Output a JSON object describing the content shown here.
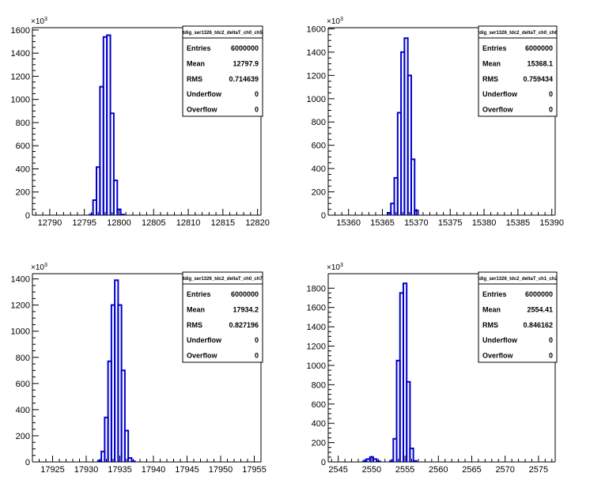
{
  "chart_data": [
    {
      "type": "histogram",
      "multiplier_label": "10",
      "multiplier_power": "3",
      "xlim": [
        12787.5,
        12820.5
      ],
      "ylim": [
        0,
        1620
      ],
      "x_ticks": [
        "12790",
        "12795",
        "12800",
        "12805",
        "12810",
        "12815",
        "12820"
      ],
      "y_ticks": [
        "0",
        "200",
        "400",
        "600",
        "800",
        "1000",
        "1200",
        "1400",
        "1600"
      ],
      "bin_width": 0.5,
      "bins": [
        {
          "x": 12796.0,
          "y": 5
        },
        {
          "x": 12796.5,
          "y": 130
        },
        {
          "x": 12797.0,
          "y": 415
        },
        {
          "x": 12797.5,
          "y": 1110
        },
        {
          "x": 12798.0,
          "y": 1540
        },
        {
          "x": 12798.5,
          "y": 1555
        },
        {
          "x": 12799.0,
          "y": 880
        },
        {
          "x": 12799.5,
          "y": 300
        },
        {
          "x": 12800.0,
          "y": 50
        },
        {
          "x": 12800.5,
          "y": 5
        }
      ],
      "stats": {
        "title": "tdig_ser1326_tdc2_deltaT_ch0_ch5",
        "rows": [
          {
            "label": "Entries",
            "value": "6000000"
          },
          {
            "label": "Mean",
            "value": "12797.9"
          },
          {
            "label": "RMS",
            "value": "0.714639"
          },
          {
            "label": "Underflow",
            "value": "0"
          },
          {
            "label": "Overflow",
            "value": "0"
          }
        ]
      }
    },
    {
      "type": "histogram",
      "multiplier_label": "10",
      "multiplier_power": "3",
      "xlim": [
        15357.0,
        15390.5
      ],
      "ylim": [
        0,
        1610
      ],
      "x_ticks": [
        "15360",
        "15365",
        "15370",
        "15375",
        "15380",
        "15385",
        "15390"
      ],
      "y_ticks": [
        "0",
        "200",
        "400",
        "600",
        "800",
        "1000",
        "1200",
        "1400",
        "1600"
      ],
      "bin_width": 0.5,
      "bins": [
        {
          "x": 15366.0,
          "y": 20
        },
        {
          "x": 15366.5,
          "y": 100
        },
        {
          "x": 15367.0,
          "y": 320
        },
        {
          "x": 15367.5,
          "y": 880
        },
        {
          "x": 15368.0,
          "y": 1400
        },
        {
          "x": 15368.5,
          "y": 1520
        },
        {
          "x": 15369.0,
          "y": 1200
        },
        {
          "x": 15369.5,
          "y": 480
        },
        {
          "x": 15370.0,
          "y": 40
        }
      ],
      "stats": {
        "title": "tdig_ser1326_tdc2_deltaT_ch0_ch6",
        "rows": [
          {
            "label": "Entries",
            "value": "6000000"
          },
          {
            "label": "Mean",
            "value": "15368.1"
          },
          {
            "label": "RMS",
            "value": "0.759434"
          },
          {
            "label": "Underflow",
            "value": "0"
          },
          {
            "label": "Overflow",
            "value": "0"
          }
        ]
      }
    },
    {
      "type": "histogram",
      "multiplier_label": "10",
      "multiplier_power": "3",
      "xlim": [
        17922.0,
        17956.0
      ],
      "ylim": [
        0,
        1440
      ],
      "x_ticks": [
        "17925",
        "17930",
        "17935",
        "17940",
        "17945",
        "17950",
        "17955"
      ],
      "y_ticks": [
        "0",
        "200",
        "400",
        "600",
        "800",
        "1000",
        "1200",
        "1400"
      ],
      "bin_width": 0.5,
      "bins": [
        {
          "x": 17932.0,
          "y": 10
        },
        {
          "x": 17932.5,
          "y": 80
        },
        {
          "x": 17933.0,
          "y": 340
        },
        {
          "x": 17933.5,
          "y": 770
        },
        {
          "x": 17934.0,
          "y": 1200
        },
        {
          "x": 17934.5,
          "y": 1390
        },
        {
          "x": 17935.0,
          "y": 1200
        },
        {
          "x": 17935.5,
          "y": 700
        },
        {
          "x": 17936.0,
          "y": 240
        },
        {
          "x": 17936.5,
          "y": 30
        },
        {
          "x": 17937.0,
          "y": 5
        }
      ],
      "stats": {
        "title": "tdig_ser1326_tdc2_deltaT_ch0_ch7",
        "rows": [
          {
            "label": "Entries",
            "value": "6000000"
          },
          {
            "label": "Mean",
            "value": "17934.2"
          },
          {
            "label": "RMS",
            "value": "0.827196"
          },
          {
            "label": "Underflow",
            "value": "0"
          },
          {
            "label": "Overflow",
            "value": "0"
          }
        ]
      }
    },
    {
      "type": "histogram",
      "multiplier_label": "10",
      "multiplier_power": "3",
      "xlim": [
        2543.5,
        2577.5
      ],
      "ylim": [
        0,
        1950
      ],
      "x_ticks": [
        "2545",
        "2550",
        "2555",
        "2560",
        "2565",
        "2570",
        "2575"
      ],
      "y_ticks": [
        "0",
        "200",
        "400",
        "600",
        "800",
        "1000",
        "1200",
        "1400",
        "1600",
        "1800"
      ],
      "bin_width": 0.5,
      "bins": [
        {
          "x": 2549.0,
          "y": 10
        },
        {
          "x": 2549.5,
          "y": 30
        },
        {
          "x": 2550.0,
          "y": 50
        },
        {
          "x": 2550.5,
          "y": 30
        },
        {
          "x": 2551.0,
          "y": 8
        },
        {
          "x": 2553.0,
          "y": 10
        },
        {
          "x": 2553.5,
          "y": 240
        },
        {
          "x": 2554.0,
          "y": 1050
        },
        {
          "x": 2554.5,
          "y": 1750
        },
        {
          "x": 2555.0,
          "y": 1850
        },
        {
          "x": 2555.5,
          "y": 830
        },
        {
          "x": 2556.0,
          "y": 140
        },
        {
          "x": 2556.5,
          "y": 10
        }
      ],
      "stats": {
        "title": "tdig_ser1326_tdc2_deltaT_ch1_ch2",
        "rows": [
          {
            "label": "Entries",
            "value": "6000000"
          },
          {
            "label": "Mean",
            "value": "2554.41"
          },
          {
            "label": "RMS",
            "value": "0.846162"
          },
          {
            "label": "Underflow",
            "value": "0"
          },
          {
            "label": "Overflow",
            "value": "0"
          }
        ]
      }
    }
  ]
}
